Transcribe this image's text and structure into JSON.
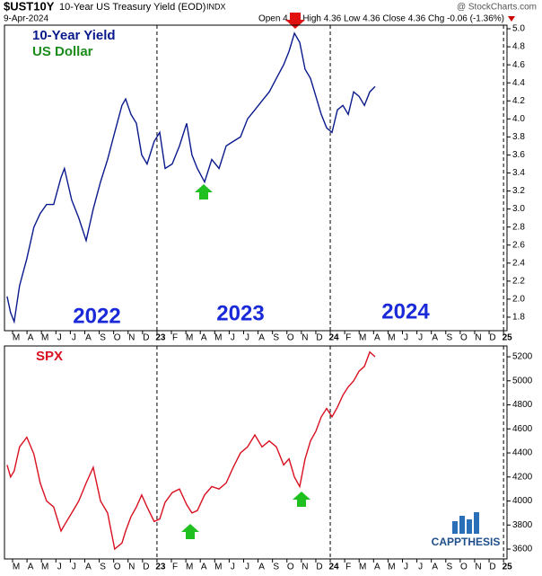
{
  "header": {
    "symbol": "$UST10Y",
    "name": "10-Year US Treasury Yield (EOD)",
    "exchange": "INDX",
    "date": "9-Apr-2024",
    "source": "@ StockCharts.com",
    "quote": "Open 4.36  High 4.36  Low 4.36  Close 4.36  Chg -0.06 (-1.36%)"
  },
  "logo": "CAPPTHESIS",
  "chart_data": [
    {
      "type": "line",
      "x": [
        2022.135,
        2022.155,
        2022.176,
        2022.207,
        2022.249,
        2022.29,
        2022.326,
        2022.363,
        2022.404,
        2022.446,
        2022.466,
        2022.508,
        2022.549,
        2022.591,
        2022.632,
        2022.674,
        2022.715,
        2022.756,
        2022.798,
        2022.819,
        2022.85,
        2022.881,
        2022.912,
        2022.943,
        2022.984,
        2023.016,
        2023.047,
        2023.088,
        2023.13,
        2023.171,
        2023.202,
        2023.233,
        2023.275,
        2023.316,
        2023.358,
        2023.399,
        2023.44,
        2023.482,
        2023.523,
        2023.565,
        2023.606,
        2023.648,
        2023.689,
        2023.731,
        2023.762,
        2023.793,
        2023.824,
        2023.855,
        2023.886,
        2023.917,
        2023.948,
        2023.979,
        2024.01,
        2024.041,
        2024.073,
        2024.104,
        2024.135,
        2024.166,
        2024.197,
        2024.228,
        2024.259
      ],
      "series": [
        {
          "name": "10-Year Yield",
          "color": "#0a1a8c",
          "values": [
            2.03,
            1.85,
            1.75,
            2.15,
            2.45,
            2.8,
            2.95,
            3.05,
            3.05,
            3.35,
            3.45,
            3.1,
            2.9,
            2.65,
            3.0,
            3.3,
            3.55,
            3.85,
            4.15,
            4.22,
            4.05,
            3.95,
            3.6,
            3.5,
            3.75,
            3.85,
            3.45,
            3.5,
            3.7,
            3.95,
            3.6,
            3.45,
            3.3,
            3.55,
            3.45,
            3.7,
            3.75,
            3.8,
            4.0,
            4.1,
            4.2,
            4.3,
            4.45,
            4.6,
            4.75,
            4.95,
            4.85,
            4.55,
            4.45,
            4.25,
            4.05,
            3.9,
            3.85,
            4.1,
            4.15,
            4.05,
            4.3,
            4.25,
            4.15,
            4.3,
            4.36
          ]
        }
      ],
      "annotations": [
        {
          "text": "US Dollar",
          "color": "#1a8c1a"
        },
        {
          "text": "2022",
          "color": "#1a2ad8"
        },
        {
          "text": "2023",
          "color": "#1a2ad8"
        },
        {
          "text": "2024",
          "color": "#1a2ad8"
        }
      ],
      "xlim": [
        2022.12,
        2025.02
      ],
      "ylim": [
        1.65,
        5.04
      ],
      "yticks": [
        1.8,
        {
          "value": 2,
          "label": "2.0"
        },
        2.2,
        2.4,
        2.6,
        2.8,
        {
          "value": 3,
          "label": "3.0"
        },
        3.2,
        3.4,
        3.6,
        3.8,
        {
          "value": 4,
          "label": "4.0"
        },
        4.2,
        4.4,
        4.6,
        4.8,
        {
          "value": 5,
          "label": "5.0"
        }
      ],
      "xticks": [
        {
          "value": 2022.1667,
          "label": "M"
        },
        {
          "value": 2022.25,
          "label": "A"
        },
        {
          "value": 2022.3333,
          "label": "M"
        },
        {
          "value": 2022.4167,
          "label": "J"
        },
        {
          "value": 2022.5,
          "label": "J"
        },
        {
          "value": 2022.5833,
          "label": "A"
        },
        {
          "value": 2022.6667,
          "label": "S"
        },
        {
          "value": 2022.75,
          "label": "O"
        },
        {
          "value": 2022.8333,
          "label": "N"
        },
        {
          "value": 2022.9167,
          "label": "D"
        },
        {
          "value": 2023,
          "label": "23"
        },
        {
          "value": 2023.0833,
          "label": "F"
        },
        {
          "value": 2023.1667,
          "label": "M"
        },
        {
          "value": 2023.25,
          "label": "A"
        },
        {
          "value": 2023.3333,
          "label": "M"
        },
        {
          "value": 2023.4167,
          "label": "J"
        },
        {
          "value": 2023.5,
          "label": "J"
        },
        {
          "value": 2023.5833,
          "label": "A"
        },
        {
          "value": 2023.6667,
          "label": "S"
        },
        {
          "value": 2023.75,
          "label": "O"
        },
        {
          "value": 2023.8333,
          "label": "N"
        },
        {
          "value": 2023.9167,
          "label": "D"
        },
        {
          "value": 2024,
          "label": "24"
        },
        {
          "value": 2024.0833,
          "label": "F"
        },
        {
          "value": 2024.1667,
          "label": "M"
        },
        {
          "value": 2024.25,
          "label": "A"
        },
        {
          "value": 2024.3333,
          "label": "M"
        },
        {
          "value": 2024.4167,
          "label": "J"
        },
        {
          "value": 2024.5,
          "label": "J"
        },
        {
          "value": 2024.5833,
          "label": "A"
        },
        {
          "value": 2024.6667,
          "label": "S"
        },
        {
          "value": 2024.75,
          "label": "O"
        },
        {
          "value": 2024.8333,
          "label": "N"
        },
        {
          "value": 2024.9167,
          "label": "D"
        },
        {
          "value": 2025,
          "label": "25"
        }
      ]
    },
    {
      "type": "line",
      "x": [
        2022.135,
        2022.155,
        2022.176,
        2022.207,
        2022.249,
        2022.29,
        2022.326,
        2022.363,
        2022.404,
        2022.446,
        2022.466,
        2022.508,
        2022.549,
        2022.591,
        2022.632,
        2022.674,
        2022.715,
        2022.756,
        2022.798,
        2022.819,
        2022.85,
        2022.881,
        2022.912,
        2022.943,
        2022.984,
        2023.016,
        2023.047,
        2023.088,
        2023.13,
        2023.171,
        2023.202,
        2023.233,
        2023.275,
        2023.316,
        2023.358,
        2023.399,
        2023.44,
        2023.482,
        2023.523,
        2023.565,
        2023.606,
        2023.648,
        2023.689,
        2023.731,
        2023.762,
        2023.793,
        2023.824,
        2023.855,
        2023.886,
        2023.917,
        2023.948,
        2023.979,
        2024.01,
        2024.041,
        2024.073,
        2024.104,
        2024.135,
        2024.166,
        2024.197,
        2024.228,
        2024.259
      ],
      "series": [
        {
          "name": "SPX",
          "color": "#d81020",
          "values": [
            4300,
            4200,
            4250,
            4450,
            4530,
            4390,
            4150,
            4000,
            3950,
            3750,
            3800,
            3900,
            4000,
            4150,
            4280,
            4000,
            3900,
            3600,
            3650,
            3750,
            3870,
            3950,
            4050,
            3950,
            3830,
            3850,
            3990,
            4070,
            4100,
            3970,
            3900,
            3920,
            4050,
            4120,
            4100,
            4150,
            4280,
            4400,
            4450,
            4550,
            4450,
            4500,
            4450,
            4300,
            4350,
            4200,
            4120,
            4350,
            4500,
            4580,
            4700,
            4770,
            4700,
            4780,
            4880,
            4950,
            5000,
            5080,
            5120,
            5240,
            5200
          ]
        }
      ],
      "xlim": [
        2022.12,
        2025.02
      ],
      "ylim": [
        3518,
        5290
      ],
      "yticks": [
        3600,
        3800,
        4000,
        4200,
        4400,
        4600,
        4800,
        5000,
        5200
      ],
      "xticks": [
        {
          "value": 2022.1667,
          "label": "M"
        },
        {
          "value": 2022.25,
          "label": "A"
        },
        {
          "value": 2022.3333,
          "label": "M"
        },
        {
          "value": 2022.4167,
          "label": "J"
        },
        {
          "value": 2022.5,
          "label": "J"
        },
        {
          "value": 2022.5833,
          "label": "A"
        },
        {
          "value": 2022.6667,
          "label": "S"
        },
        {
          "value": 2022.75,
          "label": "O"
        },
        {
          "value": 2022.8333,
          "label": "N"
        },
        {
          "value": 2022.9167,
          "label": "D"
        },
        {
          "value": 2023,
          "label": "23"
        },
        {
          "value": 2023.0833,
          "label": "F"
        },
        {
          "value": 2023.1667,
          "label": "M"
        },
        {
          "value": 2023.25,
          "label": "A"
        },
        {
          "value": 2023.3333,
          "label": "M"
        },
        {
          "value": 2023.4167,
          "label": "J"
        },
        {
          "value": 2023.5,
          "label": "J"
        },
        {
          "value": 2023.5833,
          "label": "A"
        },
        {
          "value": 2023.6667,
          "label": "S"
        },
        {
          "value": 2023.75,
          "label": "O"
        },
        {
          "value": 2023.8333,
          "label": "N"
        },
        {
          "value": 2023.9167,
          "label": "D"
        },
        {
          "value": 2024,
          "label": "24"
        },
        {
          "value": 2024.0833,
          "label": "F"
        },
        {
          "value": 2024.1667,
          "label": "M"
        },
        {
          "value": 2024.25,
          "label": "A"
        },
        {
          "value": 2024.3333,
          "label": "M"
        },
        {
          "value": 2024.4167,
          "label": "J"
        },
        {
          "value": 2024.5,
          "label": "J"
        },
        {
          "value": 2024.5833,
          "label": "A"
        },
        {
          "value": 2024.6667,
          "label": "S"
        },
        {
          "value": 2024.75,
          "label": "O"
        },
        {
          "value": 2024.8333,
          "label": "N"
        },
        {
          "value": 2024.9167,
          "label": "D"
        },
        {
          "value": 2025,
          "label": "25"
        }
      ]
    }
  ]
}
